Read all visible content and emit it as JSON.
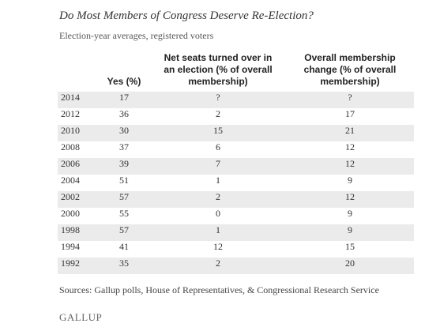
{
  "header": {
    "title": "Do Most Members of Congress Deserve Re-Election?",
    "subtitle": "Election-year averages, registered voters"
  },
  "table": {
    "columns": [
      [
        "Yes (%)"
      ],
      [
        "Net seats turned over in",
        "an election (% of overall",
        "membership)"
      ],
      [
        "Overall membership",
        "change (% of overall",
        "membership)"
      ]
    ],
    "rows": [
      [
        "2014",
        17,
        "?",
        "?"
      ],
      [
        "2012",
        36,
        2,
        17
      ],
      [
        "2010",
        30,
        15,
        21
      ],
      [
        "2008",
        37,
        6,
        12
      ],
      [
        "2006",
        39,
        7,
        12
      ],
      [
        "2004",
        51,
        1,
        9
      ],
      [
        "2002",
        57,
        2,
        12
      ],
      [
        "2000",
        55,
        0,
        9
      ],
      [
        "1998",
        57,
        1,
        9
      ],
      [
        "1994",
        41,
        12,
        15
      ],
      [
        "1992",
        35,
        2,
        20
      ]
    ]
  },
  "footer": {
    "source": "Sources: Gallup polls, House of Representatives, & Congressional Research Service",
    "brand": "GALLUP"
  }
}
